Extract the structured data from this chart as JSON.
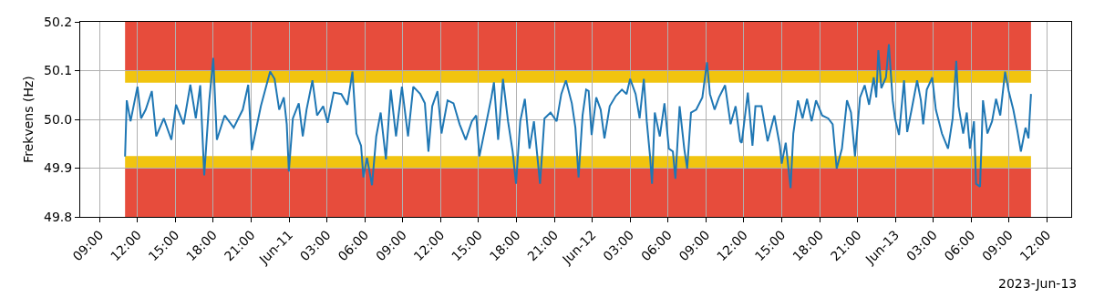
{
  "chart_data": {
    "type": "line",
    "ylabel": "Frekvens (Hz)",
    "grid": true,
    "line_style": "solid",
    "marker": "none",
    "xlim": [
      "2023-06-10T07:28",
      "2023-06-13T13:55"
    ],
    "ylim": [
      49.8,
      50.2
    ],
    "yticks": [
      49.8,
      49.9,
      {
        "value": 50.0,
        "label": "50.0"
      },
      50.1,
      50.2
    ],
    "xticks": [
      {
        "value": "2023-06-10T09:00",
        "label": "09:00"
      },
      {
        "value": "2023-06-10T12:00",
        "label": "12:00"
      },
      {
        "value": "2023-06-10T15:00",
        "label": "15:00"
      },
      {
        "value": "2023-06-10T18:00",
        "label": "18:00"
      },
      {
        "value": "2023-06-10T21:00",
        "label": "21:00"
      },
      {
        "value": "2023-06-11T00:00",
        "label": "Jun-11"
      },
      {
        "value": "2023-06-11T03:00",
        "label": "03:00"
      },
      {
        "value": "2023-06-11T06:00",
        "label": "06:00"
      },
      {
        "value": "2023-06-11T09:00",
        "label": "09:00"
      },
      {
        "value": "2023-06-11T12:00",
        "label": "12:00"
      },
      {
        "value": "2023-06-11T15:00",
        "label": "15:00"
      },
      {
        "value": "2023-06-11T18:00",
        "label": "18:00"
      },
      {
        "value": "2023-06-11T21:00",
        "label": "21:00"
      },
      {
        "value": "2023-06-12T00:00",
        "label": "Jun-12"
      },
      {
        "value": "2023-06-12T03:00",
        "label": "03:00"
      },
      {
        "value": "2023-06-12T06:00",
        "label": "06:00"
      },
      {
        "value": "2023-06-12T09:00",
        "label": "09:00"
      },
      {
        "value": "2023-06-12T12:00",
        "label": "12:00"
      },
      {
        "value": "2023-06-12T15:00",
        "label": "15:00"
      },
      {
        "value": "2023-06-12T18:00",
        "label": "18:00"
      },
      {
        "value": "2023-06-12T21:00",
        "label": "21:00"
      },
      {
        "value": "2023-06-13T00:00",
        "label": "Jun-13"
      },
      {
        "value": "2023-06-13T03:00",
        "label": "03:00"
      },
      {
        "value": "2023-06-13T06:00",
        "label": "06:00"
      },
      {
        "value": "2023-06-13T09:00",
        "label": "09:00"
      },
      {
        "value": "2023-06-13T12:00",
        "label": "12:00"
      }
    ],
    "bands": [
      {
        "axis": "y",
        "from": 50.1,
        "to": 50.2,
        "color": "#e74c3c"
      },
      {
        "axis": "y",
        "from": 50.075,
        "to": 50.1,
        "color": "#f1c40f"
      },
      {
        "axis": "y",
        "from": 49.9,
        "to": 49.925,
        "color": "#f1c40f"
      },
      {
        "axis": "y",
        "from": 49.8,
        "to": 49.9,
        "color": "#e74c3c"
      }
    ],
    "annotations": [
      "2023-Jun-13"
    ],
    "series": [
      {
        "color": "#1f77b4",
        "x": [
          "2023-06-10T11:01",
          "2023-06-10T11:09",
          "2023-06-10T11:27",
          "2023-06-10T12:00",
          "2023-06-10T12:17",
          "2023-06-10T12:39",
          "2023-06-10T13:08",
          "2023-06-10T13:29",
          "2023-06-10T14:05",
          "2023-06-10T14:41",
          "2023-06-10T15:03",
          "2023-06-10T15:39",
          "2023-06-10T16:11",
          "2023-06-10T16:37",
          "2023-06-10T16:58",
          "2023-06-10T17:17",
          "2023-06-10T17:41",
          "2023-06-10T18:00",
          "2023-06-10T18:17",
          "2023-06-10T18:54",
          "2023-06-10T19:37",
          "2023-06-10T20:20",
          "2023-06-10T20:46",
          "2023-06-10T21:03",
          "2023-06-10T21:46",
          "2023-06-10T22:30",
          "2023-06-10T22:51",
          "2023-06-10T23:13",
          "2023-06-10T23:35",
          "2023-06-10T23:49",
          "2023-06-10T23:59",
          "2023-06-11T00:18",
          "2023-06-11T00:46",
          "2023-06-11T01:05",
          "2023-06-11T01:23",
          "2023-06-11T01:51",
          "2023-06-11T02:13",
          "2023-06-11T02:42",
          "2023-06-11T03:03",
          "2023-06-11T03:32",
          "2023-06-11T04:08",
          "2023-06-11T04:37",
          "2023-06-11T05:01",
          "2023-06-11T05:20",
          "2023-06-11T05:42",
          "2023-06-11T05:53",
          "2023-06-11T06:10",
          "2023-06-11T06:34",
          "2023-06-11T06:54",
          "2023-06-11T07:15",
          "2023-06-11T07:40",
          "2023-06-11T08:03",
          "2023-06-11T08:28",
          "2023-06-11T08:56",
          "2023-06-11T09:25",
          "2023-06-11T09:50",
          "2023-06-11T10:23",
          "2023-06-11T10:45",
          "2023-06-11T11:02",
          "2023-06-11T11:20",
          "2023-06-11T11:45",
          "2023-06-11T12:04",
          "2023-06-11T12:33",
          "2023-06-11T13:01",
          "2023-06-11T13:30",
          "2023-06-11T13:59",
          "2023-06-11T14:28",
          "2023-06-11T14:49",
          "2023-06-11T15:04",
          "2023-06-11T15:32",
          "2023-06-11T16:01",
          "2023-06-11T16:13",
          "2023-06-11T16:33",
          "2023-06-11T16:56",
          "2023-06-11T17:20",
          "2023-06-11T17:42",
          "2023-06-11T17:58",
          "2023-06-11T18:18",
          "2023-06-11T18:40",
          "2023-06-11T19:02",
          "2023-06-11T19:23",
          "2023-06-11T19:52",
          "2023-06-11T20:13",
          "2023-06-11T20:42",
          "2023-06-11T21:11",
          "2023-06-11T21:33",
          "2023-06-11T21:55",
          "2023-06-11T22:23",
          "2023-06-11T22:40",
          "2023-06-11T22:55",
          "2023-06-11T23:14",
          "2023-06-11T23:31",
          "2023-06-11T23:43",
          "2023-06-11T23:57",
          "2023-06-12T00:19",
          "2023-06-12T00:40",
          "2023-06-12T00:58",
          "2023-06-12T01:23",
          "2023-06-12T01:52",
          "2023-06-12T02:21",
          "2023-06-12T02:43",
          "2023-06-12T03:00",
          "2023-06-12T03:26",
          "2023-06-12T03:45",
          "2023-06-12T04:05",
          "2023-06-12T04:19",
          "2023-06-12T04:34",
          "2023-06-12T04:44",
          "2023-06-12T04:57",
          "2023-06-12T05:21",
          "2023-06-12T05:43",
          "2023-06-12T06:04",
          "2023-06-12T06:23",
          "2023-06-12T06:35",
          "2023-06-12T06:55",
          "2023-06-12T07:17",
          "2023-06-12T07:31",
          "2023-06-12T07:49",
          "2023-06-12T08:14",
          "2023-06-12T08:43",
          "2023-06-12T09:05",
          "2023-06-12T09:19",
          "2023-06-12T09:41",
          "2023-06-12T10:02",
          "2023-06-12T10:31",
          "2023-06-12T10:57",
          "2023-06-12T11:21",
          "2023-06-12T11:43",
          "2023-06-12T11:50",
          "2023-06-12T12:19",
          "2023-06-12T12:41",
          "2023-06-12T12:55",
          "2023-06-12T13:24",
          "2023-06-12T13:53",
          "2023-06-12T14:25",
          "2023-06-12T14:51",
          "2023-06-12T15:00",
          "2023-06-12T15:19",
          "2023-06-12T15:42",
          "2023-06-12T15:55",
          "2023-06-12T16:17",
          "2023-06-12T16:39",
          "2023-06-12T17:00",
          "2023-06-12T17:22",
          "2023-06-12T17:43",
          "2023-06-12T18:12",
          "2023-06-12T18:41",
          "2023-06-12T19:02",
          "2023-06-12T19:21",
          "2023-06-12T19:46",
          "2023-06-12T20:10",
          "2023-06-12T20:29",
          "2023-06-12T20:48",
          "2023-06-12T21:12",
          "2023-06-12T21:34",
          "2023-06-12T21:55",
          "2023-06-12T22:17",
          "2023-06-12T22:29",
          "2023-06-12T22:39",
          "2023-06-12T22:53",
          "2023-06-12T23:15",
          "2023-06-12T23:29",
          "2023-06-12T23:47",
          "2023-06-12T23:58",
          "2023-06-13T00:17",
          "2023-06-13T00:41",
          "2023-06-13T00:56",
          "2023-06-13T01:17",
          "2023-06-13T01:43",
          "2023-06-13T02:01",
          "2023-06-13T02:12",
          "2023-06-13T02:29",
          "2023-06-13T02:55",
          "2023-06-13T03:12",
          "2023-06-13T03:41",
          "2023-06-13T04:10",
          "2023-06-13T04:32",
          "2023-06-13T04:49",
          "2023-06-13T05:00",
          "2023-06-13T05:22",
          "2023-06-13T05:39",
          "2023-06-13T05:54",
          "2023-06-13T06:13",
          "2023-06-13T06:23",
          "2023-06-13T06:42",
          "2023-06-13T06:56",
          "2023-06-13T07:17",
          "2023-06-13T07:39",
          "2023-06-13T07:58",
          "2023-06-13T08:18",
          "2023-06-13T08:41",
          "2023-06-13T08:58",
          "2023-06-13T09:20",
          "2023-06-13T09:39",
          "2023-06-13T09:56",
          "2023-06-13T10:18",
          "2023-06-13T10:32",
          "2023-06-13T10:44"
        ],
        "values": [
          49.924,
          50.039,
          49.996,
          50.067,
          50.002,
          50.02,
          50.058,
          49.965,
          50.002,
          49.958,
          50.03,
          49.99,
          50.071,
          50.002,
          50.07,
          49.885,
          50.039,
          50.126,
          49.958,
          50.008,
          49.983,
          50.02,
          50.071,
          49.937,
          50.027,
          50.098,
          50.083,
          50.02,
          50.045,
          49.99,
          49.893,
          50.002,
          50.033,
          49.965,
          50.02,
          50.08,
          50.008,
          50.027,
          49.993,
          50.055,
          50.052,
          50.03,
          50.098,
          49.971,
          49.946,
          49.881,
          49.921,
          49.865,
          49.965,
          50.014,
          49.918,
          50.061,
          49.965,
          50.067,
          49.965,
          50.067,
          50.052,
          50.033,
          49.934,
          50.027,
          50.058,
          49.971,
          50.039,
          50.033,
          49.99,
          49.958,
          49.996,
          50.008,
          49.924,
          49.983,
          50.045,
          50.076,
          49.958,
          50.083,
          49.996,
          49.934,
          49.868,
          49.996,
          50.042,
          49.94,
          49.996,
          49.868,
          50.002,
          50.014,
          49.996,
          50.052,
          50.08,
          50.033,
          49.983,
          49.881,
          50.008,
          50.061,
          50.058,
          49.968,
          50.045,
          50.02,
          49.961,
          50.027,
          50.048,
          50.061,
          50.052,
          50.083,
          50.052,
          50.002,
          50.083,
          49.996,
          49.927,
          49.868,
          50.014,
          49.965,
          50.033,
          49.94,
          49.934,
          49.878,
          50.027,
          49.94,
          49.899,
          50.014,
          50.02,
          50.045,
          50.117,
          50.052,
          50.02,
          50.045,
          50.07,
          49.99,
          50.027,
          49.955,
          49.952,
          50.055,
          49.946,
          50.027,
          50.027,
          49.955,
          50.008,
          49.946,
          49.909,
          49.952,
          49.859,
          49.971,
          50.039,
          50.002,
          50.042,
          49.996,
          50.039,
          50.008,
          50.002,
          49.99,
          49.899,
          49.94,
          50.039,
          50.014,
          49.924,
          50.045,
          50.07,
          50.03,
          50.086,
          50.045,
          50.142,
          50.064,
          50.086,
          50.154,
          50.039,
          50.002,
          49.968,
          50.08,
          49.974,
          50.02,
          50.08,
          50.039,
          49.99,
          50.061,
          50.086,
          50.02,
          49.971,
          49.94,
          50.002,
          50.12,
          50.027,
          49.971,
          50.014,
          49.94,
          49.996,
          49.868,
          49.862,
          50.039,
          49.971,
          49.996,
          50.042,
          50.008,
          50.098,
          50.058,
          50.02,
          49.977,
          49.934,
          49.983,
          49.961,
          50.052
        ]
      }
    ]
  }
}
